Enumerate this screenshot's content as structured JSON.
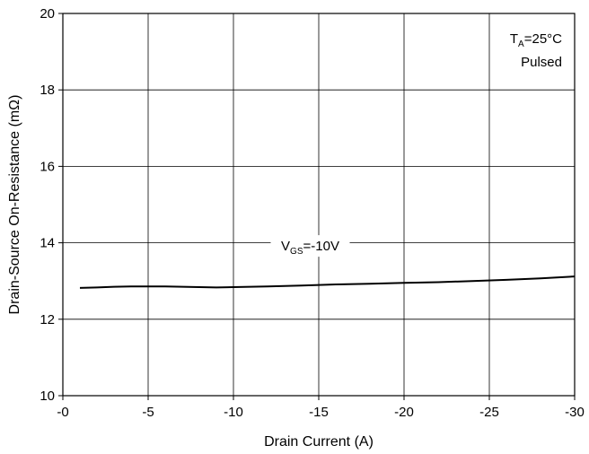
{
  "chart_data": {
    "type": "line",
    "xlabel": "Drain Current (A)",
    "ylabel": "Drain-Source On-Resistance (mΩ)",
    "xlim": [
      0,
      -30
    ],
    "ylim": [
      10,
      20
    ],
    "x_ticks": [
      {
        "value": 0,
        "label": "-0"
      },
      {
        "value": -5,
        "label": "-5"
      },
      {
        "value": -10,
        "label": "-10"
      },
      {
        "value": -15,
        "label": "-15"
      },
      {
        "value": -20,
        "label": "-20"
      },
      {
        "value": -25,
        "label": "-25"
      },
      {
        "value": -30,
        "label": "-30"
      }
    ],
    "y_ticks": [
      {
        "value": 10,
        "label": "10"
      },
      {
        "value": 12,
        "label": "12"
      },
      {
        "value": 14,
        "label": "14"
      },
      {
        "value": 16,
        "label": "16"
      },
      {
        "value": 18,
        "label": "18"
      },
      {
        "value": 20,
        "label": "20"
      }
    ],
    "grid": true,
    "series": [
      {
        "x": [
          -1,
          -2,
          -3,
          -4,
          -5,
          -6,
          -7,
          -8,
          -9,
          -10,
          -12,
          -14,
          -16,
          -18,
          -20,
          -22,
          -24,
          -26,
          -28,
          -30
        ],
        "y": [
          12.82,
          12.83,
          12.85,
          12.86,
          12.86,
          12.86,
          12.85,
          12.84,
          12.83,
          12.84,
          12.86,
          12.88,
          12.91,
          12.93,
          12.95,
          12.97,
          13.0,
          13.03,
          13.07,
          13.12
        ]
      }
    ],
    "annotations": {
      "condition": {
        "T": "T",
        "T_sub": "A",
        "T_rest": "=25°C",
        "line2": "Pulsed"
      },
      "curve_label": {
        "V": "V",
        "V_sub": "GS",
        "V_rest": "=-10V",
        "x": -14.5,
        "y": 13.8
      }
    }
  }
}
